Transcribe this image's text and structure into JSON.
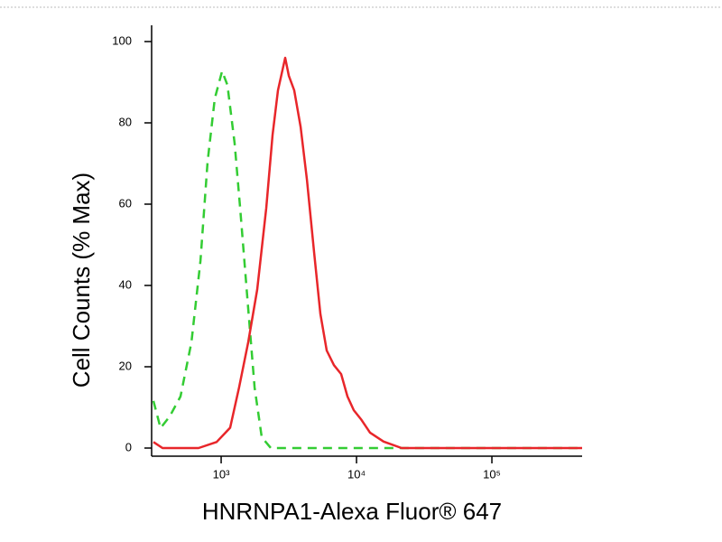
{
  "chart_data": {
    "type": "line",
    "x_label": "HNRNPA1-Alexa Fluor® 647",
    "y_label": "Cell Counts (% Max)",
    "x_scale": "log",
    "xlim": [
      316,
      464000
    ],
    "xticks": [
      {
        "value": 1000,
        "label": "10³"
      },
      {
        "value": 10000,
        "label": "10⁴"
      },
      {
        "value": 100000,
        "label": "10⁵"
      }
    ],
    "ylim": [
      -2,
      104
    ],
    "yticks": [
      0,
      20,
      40,
      60,
      80,
      100
    ],
    "series": [
      {
        "color": "#33cc33",
        "line_style": "dashed",
        "x": [
          316,
          357,
          417,
          501,
          603,
          703,
          794,
          898,
          1016,
          1113,
          1259,
          1380,
          1560,
          1765,
          1995,
          2328,
          10800,
          464000
        ],
        "values": [
          11.6,
          4.9,
          7.8,
          12.7,
          26,
          46,
          70.4,
          86,
          92.7,
          89.3,
          74.9,
          59.3,
          37.1,
          14.9,
          2.7,
          0,
          0,
          0
        ]
      },
      {
        "color": "#e8262a",
        "line_style": "solid",
        "x": [
          316,
          369,
          681,
          926,
          1166,
          1359,
          1585,
          1848,
          2154,
          2399,
          2630,
          2840,
          2973,
          3162,
          3467,
          3863,
          4300,
          4862,
          5412,
          6026,
          6813,
          7703,
          8577,
          9550,
          10800,
          12590,
          15850,
          21540,
          464000
        ],
        "values": [
          1.5,
          0,
          0,
          1.5,
          5,
          15,
          26,
          39,
          59,
          77,
          88,
          93,
          96,
          91.6,
          88,
          79,
          66,
          48,
          33,
          24,
          20.4,
          18.2,
          12.7,
          9.3,
          7.1,
          3.8,
          1.6,
          0,
          0
        ]
      }
    ]
  }
}
